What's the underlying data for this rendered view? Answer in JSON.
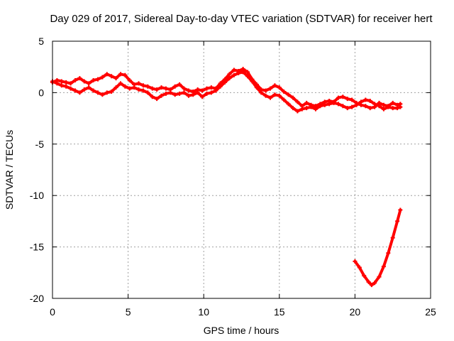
{
  "chart_data": {
    "type": "line",
    "title": "Day 029 of 2017, Sidereal Day-to-day VTEC variation (SDTVAR) for receiver hert",
    "xlabel": "GPS time / hours",
    "ylabel": "SDTVAR / TECUs",
    "xlim": [
      0,
      25
    ],
    "ylim": [
      -20,
      5
    ],
    "xticks": [
      0,
      5,
      10,
      15,
      20,
      25
    ],
    "yticks": [
      -20,
      -15,
      -10,
      -5,
      0,
      5
    ],
    "grid": true,
    "colors": {
      "series": "#ff0000",
      "grid": "#a0a0a0",
      "axis": "#000000"
    },
    "series": [
      {
        "name": "trace-1",
        "x": [
          0.0,
          0.3,
          0.6,
          0.9,
          1.2,
          1.5,
          1.8,
          2.1,
          2.4,
          2.7,
          3.0,
          3.3,
          3.6,
          3.9,
          4.2,
          4.5,
          4.8,
          5.1,
          5.4,
          5.7,
          6.0,
          6.3,
          6.6,
          6.9,
          7.2,
          7.5,
          7.8,
          8.1,
          8.4,
          8.7,
          9.0,
          9.3,
          9.6,
          9.9,
          10.2,
          10.5,
          10.8,
          11.1,
          11.4,
          11.7,
          12.0,
          12.3,
          12.6,
          12.9,
          13.2,
          13.5,
          13.8,
          14.1,
          14.4,
          14.7,
          15.0,
          15.3,
          15.6,
          15.9,
          16.2,
          16.5,
          16.8,
          17.1,
          17.4,
          17.7,
          18.0,
          18.3,
          18.6,
          18.9,
          19.2,
          19.5,
          19.8,
          20.1,
          20.4,
          20.7,
          21.0,
          21.3,
          21.6,
          21.9,
          22.2,
          22.5,
          22.8,
          23.0
        ],
        "y": [
          1.0,
          1.2,
          1.1,
          1.0,
          0.9,
          1.2,
          1.4,
          1.1,
          0.9,
          1.2,
          1.3,
          1.5,
          1.8,
          1.6,
          1.4,
          1.8,
          1.7,
          1.2,
          0.8,
          0.9,
          0.7,
          0.6,
          0.4,
          0.3,
          0.5,
          0.4,
          0.3,
          0.6,
          0.8,
          0.4,
          0.2,
          0.1,
          0.3,
          0.2,
          0.4,
          0.5,
          0.4,
          0.9,
          1.3,
          1.8,
          2.2,
          2.1,
          2.3,
          2.0,
          1.3,
          0.8,
          0.3,
          0.2,
          0.4,
          0.7,
          0.5,
          0.1,
          -0.2,
          -0.5,
          -0.9,
          -1.3,
          -1.0,
          -1.2,
          -1.3,
          -1.1,
          -0.9,
          -0.8,
          -0.9,
          -0.5,
          -0.4,
          -0.6,
          -0.7,
          -1.0,
          -1.2,
          -1.3,
          -1.5,
          -1.4,
          -1.0,
          -1.2,
          -1.3,
          -1.0,
          -1.2,
          -1.1
        ]
      },
      {
        "name": "trace-2",
        "x": [
          0.0,
          0.3,
          0.6,
          0.9,
          1.2,
          1.5,
          1.8,
          2.1,
          2.4,
          2.7,
          3.0,
          3.3,
          3.6,
          3.9,
          4.2,
          4.5,
          4.8,
          5.1,
          5.4,
          5.7,
          6.0,
          6.3,
          6.6,
          6.9,
          7.2,
          7.5,
          7.8,
          8.1,
          8.4,
          8.7,
          9.0,
          9.3,
          9.6,
          9.9,
          10.2,
          10.5,
          10.8,
          11.1,
          11.4,
          11.7,
          12.0,
          12.3,
          12.6,
          12.9,
          13.2,
          13.5,
          13.8,
          14.1,
          14.4,
          14.7,
          15.0,
          15.3,
          15.6,
          15.9,
          16.2,
          16.5,
          16.8,
          17.1,
          17.4,
          17.7,
          18.0,
          18.3,
          18.6,
          18.9,
          19.2,
          19.5,
          19.8,
          20.1,
          20.4,
          20.7,
          21.0,
          21.3,
          21.6,
          21.9,
          22.2,
          22.5,
          22.8,
          23.0
        ],
        "y": [
          1.1,
          0.9,
          0.7,
          0.6,
          0.4,
          0.2,
          0.0,
          0.3,
          0.5,
          0.2,
          0.0,
          -0.2,
          0.0,
          0.1,
          0.5,
          0.9,
          0.6,
          0.4,
          0.5,
          0.3,
          0.2,
          0.0,
          -0.4,
          -0.6,
          -0.3,
          -0.1,
          0.0,
          -0.2,
          -0.1,
          0.0,
          -0.3,
          -0.2,
          0.0,
          -0.4,
          -0.1,
          0.0,
          0.2,
          0.6,
          1.0,
          1.4,
          1.7,
          1.9,
          2.0,
          1.6,
          1.1,
          0.5,
          0.0,
          -0.3,
          -0.5,
          -0.2,
          -0.3,
          -0.7,
          -1.1,
          -1.5,
          -1.8,
          -1.6,
          -1.5,
          -1.4,
          -1.6,
          -1.3,
          -1.2,
          -1.1,
          -1.0,
          -1.1,
          -1.3,
          -1.5,
          -1.4,
          -1.2,
          -0.9,
          -0.7,
          -0.8,
          -1.1,
          -1.3,
          -1.6,
          -1.4,
          -1.5,
          -1.5,
          -1.4
        ]
      },
      {
        "name": "trace-3",
        "x": [
          20.0,
          20.3,
          20.6,
          20.9,
          21.1,
          21.3,
          21.6,
          21.9,
          22.2,
          22.5,
          22.8,
          23.0
        ],
        "y": [
          -16.4,
          -17.0,
          -17.8,
          -18.4,
          -18.7,
          -18.5,
          -17.9,
          -16.9,
          -15.6,
          -14.1,
          -12.5,
          -11.4
        ]
      }
    ]
  }
}
